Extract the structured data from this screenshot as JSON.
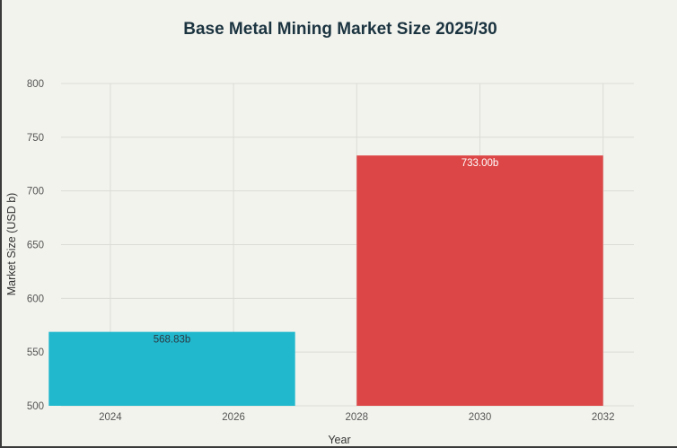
{
  "chart_data": {
    "type": "bar",
    "title": "Base Metal Mining Market Size 2025/30",
    "xlabel": "Year",
    "ylabel": "Market Size (USD b)",
    "x_ticks": [
      "2024",
      "2026",
      "2028",
      "2030",
      "2032"
    ],
    "x_tick_values": [
      2024,
      2026,
      2028,
      2030,
      2032
    ],
    "y_ticks": [
      "800",
      "750",
      "700",
      "650",
      "600",
      "550",
      "500"
    ],
    "y_tick_values": [
      800,
      750,
      700,
      650,
      600,
      550,
      500
    ],
    "xlim": [
      2023.2,
      2032.5
    ],
    "ylim": [
      500,
      800
    ],
    "grid": true,
    "bars": [
      {
        "x": 2025,
        "value": 568.83,
        "label": "568.83b",
        "color": "#21b8cd",
        "label_color": "#2b3a44"
      },
      {
        "x": 2030,
        "value": 733.0,
        "label": "733.00b",
        "color": "#dc4646",
        "label_color": "#ffffff"
      }
    ],
    "bar_width_years": 4
  }
}
